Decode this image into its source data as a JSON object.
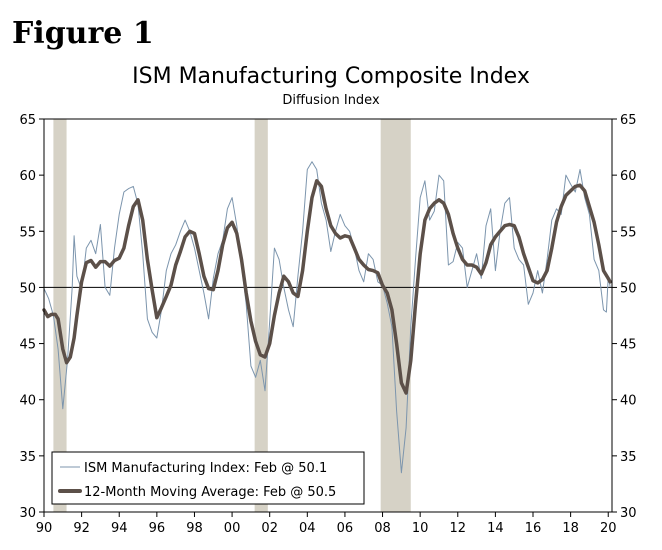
{
  "figure_label": "Figure 1",
  "chart_data": {
    "type": "line",
    "title": "ISM Manufacturing Composite Index",
    "subtitle": "Diffusion Index",
    "xlabel": "",
    "ylabel": "",
    "xlim": [
      1990,
      2020.2
    ],
    "ylim": [
      30,
      65
    ],
    "y_ticks": [
      30,
      35,
      40,
      45,
      50,
      55,
      60,
      65
    ],
    "x_ticks": [
      {
        "value": 1990,
        "label": "90"
      },
      {
        "value": 1992,
        "label": "92"
      },
      {
        "value": 1994,
        "label": "94"
      },
      {
        "value": 1996,
        "label": "96"
      },
      {
        "value": 1998,
        "label": "98"
      },
      {
        "value": 2000,
        "label": "00"
      },
      {
        "value": 2002,
        "label": "02"
      },
      {
        "value": 2004,
        "label": "04"
      },
      {
        "value": 2006,
        "label": "06"
      },
      {
        "value": 2008,
        "label": "08"
      },
      {
        "value": 2010,
        "label": "10"
      },
      {
        "value": 2012,
        "label": "12"
      },
      {
        "value": 2014,
        "label": "14"
      },
      {
        "value": 2016,
        "label": "16"
      },
      {
        "value": 2018,
        "label": "18"
      },
      {
        "value": 2020,
        "label": "20"
      }
    ],
    "reference_line": 50,
    "recessions": [
      [
        1990.5,
        1991.2
      ],
      [
        2001.2,
        2001.9
      ],
      [
        2007.9,
        2009.5
      ]
    ],
    "legend_placement": "bottom-left",
    "series": [
      {
        "name": "ISM Manufacturing Index: Feb @ 50.1",
        "color": "#7c95ad",
        "style": "thin",
        "points": [
          [
            1990.0,
            49.9
          ],
          [
            1990.25,
            49.0
          ],
          [
            1990.5,
            47.5
          ],
          [
            1990.75,
            44.5
          ],
          [
            1991.0,
            39.2
          ],
          [
            1991.25,
            43.5
          ],
          [
            1991.5,
            50.0
          ],
          [
            1991.6,
            54.6
          ],
          [
            1991.75,
            51.0
          ],
          [
            1992.0,
            49.8
          ],
          [
            1992.25,
            53.5
          ],
          [
            1992.5,
            54.2
          ],
          [
            1992.75,
            53.0
          ],
          [
            1993.0,
            55.6
          ],
          [
            1993.25,
            50.0
          ],
          [
            1993.5,
            49.3
          ],
          [
            1993.75,
            53.5
          ],
          [
            1994.0,
            56.5
          ],
          [
            1994.25,
            58.5
          ],
          [
            1994.5,
            58.8
          ],
          [
            1994.75,
            59.0
          ],
          [
            1995.0,
            57.4
          ],
          [
            1995.25,
            53.0
          ],
          [
            1995.5,
            47.2
          ],
          [
            1995.75,
            46.0
          ],
          [
            1996.0,
            45.5
          ],
          [
            1996.25,
            48.0
          ],
          [
            1996.5,
            51.5
          ],
          [
            1996.75,
            53.0
          ],
          [
            1997.0,
            53.8
          ],
          [
            1997.25,
            55.0
          ],
          [
            1997.5,
            56.0
          ],
          [
            1997.75,
            55.0
          ],
          [
            1998.0,
            53.5
          ],
          [
            1998.25,
            51.5
          ],
          [
            1998.5,
            49.5
          ],
          [
            1998.75,
            47.2
          ],
          [
            1999.0,
            50.8
          ],
          [
            1999.25,
            53.0
          ],
          [
            1999.5,
            54.2
          ],
          [
            1999.75,
            57.0
          ],
          [
            2000.0,
            58.0
          ],
          [
            2000.25,
            55.5
          ],
          [
            2000.5,
            52.0
          ],
          [
            2000.75,
            48.5
          ],
          [
            2001.0,
            43.0
          ],
          [
            2001.25,
            42.0
          ],
          [
            2001.5,
            43.5
          ],
          [
            2001.75,
            40.8
          ],
          [
            2002.0,
            47.0
          ],
          [
            2002.25,
            53.5
          ],
          [
            2002.5,
            52.5
          ],
          [
            2002.75,
            50.0
          ],
          [
            2003.0,
            48.0
          ],
          [
            2003.25,
            46.5
          ],
          [
            2003.5,
            51.0
          ],
          [
            2003.75,
            55.0
          ],
          [
            2004.0,
            60.5
          ],
          [
            2004.25,
            61.2
          ],
          [
            2004.5,
            60.5
          ],
          [
            2004.75,
            57.5
          ],
          [
            2005.0,
            56.0
          ],
          [
            2005.25,
            53.2
          ],
          [
            2005.5,
            55.0
          ],
          [
            2005.75,
            56.5
          ],
          [
            2006.0,
            55.5
          ],
          [
            2006.25,
            55.0
          ],
          [
            2006.5,
            53.5
          ],
          [
            2006.75,
            51.5
          ],
          [
            2007.0,
            50.5
          ],
          [
            2007.25,
            53.0
          ],
          [
            2007.5,
            52.5
          ],
          [
            2007.75,
            50.5
          ],
          [
            2008.0,
            50.2
          ],
          [
            2008.25,
            48.6
          ],
          [
            2008.5,
            46.5
          ],
          [
            2008.75,
            39.0
          ],
          [
            2009.0,
            33.5
          ],
          [
            2009.25,
            37.5
          ],
          [
            2009.5,
            46.5
          ],
          [
            2009.75,
            52.5
          ],
          [
            2010.0,
            58.0
          ],
          [
            2010.25,
            59.5
          ],
          [
            2010.5,
            56.0
          ],
          [
            2010.75,
            56.8
          ],
          [
            2011.0,
            60.0
          ],
          [
            2011.25,
            59.5
          ],
          [
            2011.5,
            52.0
          ],
          [
            2011.75,
            52.3
          ],
          [
            2012.0,
            54.0
          ],
          [
            2012.25,
            53.5
          ],
          [
            2012.5,
            50.0
          ],
          [
            2012.75,
            51.5
          ],
          [
            2013.0,
            53.0
          ],
          [
            2013.25,
            50.8
          ],
          [
            2013.5,
            55.5
          ],
          [
            2013.75,
            57.0
          ],
          [
            2014.0,
            51.5
          ],
          [
            2014.25,
            55.0
          ],
          [
            2014.5,
            57.5
          ],
          [
            2014.75,
            58.0
          ],
          [
            2015.0,
            53.5
          ],
          [
            2015.25,
            52.5
          ],
          [
            2015.5,
            52.0
          ],
          [
            2015.75,
            48.5
          ],
          [
            2016.0,
            49.5
          ],
          [
            2016.25,
            51.5
          ],
          [
            2016.5,
            49.5
          ],
          [
            2016.75,
            52.5
          ],
          [
            2017.0,
            56.0
          ],
          [
            2017.25,
            57.0
          ],
          [
            2017.5,
            56.5
          ],
          [
            2017.75,
            60.0
          ],
          [
            2018.0,
            59.2
          ],
          [
            2018.25,
            58.5
          ],
          [
            2018.5,
            60.5
          ],
          [
            2018.75,
            58.0
          ],
          [
            2019.0,
            56.5
          ],
          [
            2019.25,
            52.5
          ],
          [
            2019.5,
            51.5
          ],
          [
            2019.75,
            48.0
          ],
          [
            2019.9,
            47.8
          ],
          [
            2020.0,
            50.9
          ],
          [
            2020.1,
            50.1
          ]
        ]
      },
      {
        "name": "12-Month Moving Average: Feb @ 50.5",
        "color": "#5c5049",
        "style": "thick",
        "points": [
          [
            1990.0,
            48.0
          ],
          [
            1990.2,
            47.4
          ],
          [
            1990.4,
            47.6
          ],
          [
            1990.6,
            47.6
          ],
          [
            1990.75,
            47.2
          ],
          [
            1991.0,
            44.5
          ],
          [
            1991.2,
            43.3
          ],
          [
            1991.4,
            43.8
          ],
          [
            1991.6,
            45.5
          ],
          [
            1991.75,
            47.5
          ],
          [
            1992.0,
            50.5
          ],
          [
            1992.25,
            52.2
          ],
          [
            1992.5,
            52.4
          ],
          [
            1992.75,
            51.8
          ],
          [
            1993.0,
            52.3
          ],
          [
            1993.25,
            52.3
          ],
          [
            1993.5,
            51.9
          ],
          [
            1993.75,
            52.4
          ],
          [
            1994.0,
            52.6
          ],
          [
            1994.25,
            53.5
          ],
          [
            1994.5,
            55.5
          ],
          [
            1994.75,
            57.2
          ],
          [
            1995.0,
            57.8
          ],
          [
            1995.25,
            56.0
          ],
          [
            1995.5,
            52.5
          ],
          [
            1995.75,
            49.8
          ],
          [
            1996.0,
            47.3
          ],
          [
            1996.25,
            48.2
          ],
          [
            1996.5,
            49.2
          ],
          [
            1996.75,
            50.2
          ],
          [
            1997.0,
            52.0
          ],
          [
            1997.25,
            53.2
          ],
          [
            1997.5,
            54.5
          ],
          [
            1997.75,
            55.0
          ],
          [
            1998.0,
            54.8
          ],
          [
            1998.25,
            53.0
          ],
          [
            1998.5,
            51.0
          ],
          [
            1998.75,
            49.9
          ],
          [
            1999.0,
            49.8
          ],
          [
            1999.25,
            51.5
          ],
          [
            1999.5,
            53.8
          ],
          [
            1999.75,
            55.3
          ],
          [
            2000.0,
            55.8
          ],
          [
            2000.25,
            54.8
          ],
          [
            2000.5,
            52.5
          ],
          [
            2000.75,
            49.5
          ],
          [
            2001.0,
            47.0
          ],
          [
            2001.25,
            45.2
          ],
          [
            2001.5,
            44.0
          ],
          [
            2001.75,
            43.8
          ],
          [
            2002.0,
            45.0
          ],
          [
            2002.25,
            47.5
          ],
          [
            2002.5,
            49.5
          ],
          [
            2002.75,
            51.0
          ],
          [
            2003.0,
            50.5
          ],
          [
            2003.25,
            49.5
          ],
          [
            2003.5,
            49.2
          ],
          [
            2003.75,
            51.5
          ],
          [
            2004.0,
            55.0
          ],
          [
            2004.25,
            58.0
          ],
          [
            2004.5,
            59.5
          ],
          [
            2004.75,
            59.0
          ],
          [
            2005.0,
            57.0
          ],
          [
            2005.25,
            55.5
          ],
          [
            2005.5,
            54.8
          ],
          [
            2005.75,
            54.4
          ],
          [
            2006.0,
            54.6
          ],
          [
            2006.25,
            54.5
          ],
          [
            2006.5,
            53.5
          ],
          [
            2006.75,
            52.5
          ],
          [
            2007.0,
            52.0
          ],
          [
            2007.25,
            51.6
          ],
          [
            2007.5,
            51.5
          ],
          [
            2007.75,
            51.3
          ],
          [
            2008.0,
            50.2
          ],
          [
            2008.25,
            49.5
          ],
          [
            2008.5,
            48.0
          ],
          [
            2008.75,
            45.0
          ],
          [
            2009.0,
            41.5
          ],
          [
            2009.25,
            40.6
          ],
          [
            2009.5,
            43.5
          ],
          [
            2009.75,
            48.5
          ],
          [
            2010.0,
            53.0
          ],
          [
            2010.25,
            56.0
          ],
          [
            2010.5,
            57.0
          ],
          [
            2010.75,
            57.5
          ],
          [
            2011.0,
            57.8
          ],
          [
            2011.25,
            57.5
          ],
          [
            2011.5,
            56.5
          ],
          [
            2011.75,
            54.8
          ],
          [
            2012.0,
            53.5
          ],
          [
            2012.25,
            52.5
          ],
          [
            2012.5,
            52.0
          ],
          [
            2012.75,
            52.0
          ],
          [
            2013.0,
            51.8
          ],
          [
            2013.25,
            51.2
          ],
          [
            2013.5,
            52.2
          ],
          [
            2013.75,
            53.8
          ],
          [
            2014.0,
            54.5
          ],
          [
            2014.25,
            55.0
          ],
          [
            2014.5,
            55.5
          ],
          [
            2014.75,
            55.6
          ],
          [
            2015.0,
            55.5
          ],
          [
            2015.25,
            54.5
          ],
          [
            2015.5,
            53.0
          ],
          [
            2015.75,
            51.8
          ],
          [
            2016.0,
            50.6
          ],
          [
            2016.25,
            50.4
          ],
          [
            2016.5,
            50.7
          ],
          [
            2016.75,
            51.5
          ],
          [
            2017.0,
            53.5
          ],
          [
            2017.25,
            55.8
          ],
          [
            2017.5,
            57.2
          ],
          [
            2017.75,
            58.2
          ],
          [
            2018.0,
            58.6
          ],
          [
            2018.25,
            59.0
          ],
          [
            2018.5,
            59.1
          ],
          [
            2018.75,
            58.6
          ],
          [
            2019.0,
            57.2
          ],
          [
            2019.25,
            55.8
          ],
          [
            2019.5,
            53.8
          ],
          [
            2019.75,
            51.5
          ],
          [
            2020.0,
            50.8
          ],
          [
            2020.1,
            50.5
          ]
        ]
      }
    ]
  }
}
